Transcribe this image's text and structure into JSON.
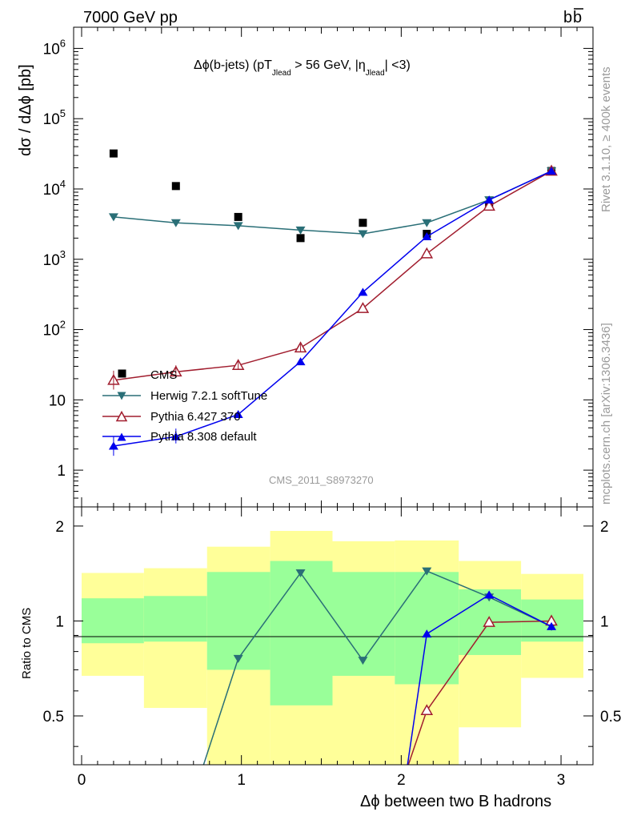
{
  "header": {
    "left": "7000 GeV pp",
    "right": "b",
    "right_bar": "b"
  },
  "side_labels": {
    "rivet": "Rivet 3.1.10, ≥ 400k events",
    "mcplots": "mcplots.cern.ch [arXiv:1306.3436]"
  },
  "colors": {
    "cms": "#000000",
    "herwig": "#2a6f77",
    "pythia6": "#a11d2e",
    "pythia8": "#0000ee",
    "band_inner": "#99ff99",
    "band_outer": "#ffff99"
  },
  "chart_data": [
    {
      "type": "scatter",
      "title_parts": {
        "main": "Δϕ(b-jets) (pT",
        "sub1": "Jlead",
        "mid": " >  56 GeV, |η",
        "sub2": "Jlead",
        "end": "| <3)"
      },
      "ylabel": "dσ / dΔϕ [pb]",
      "yscale": "log",
      "ylim": [
        0.3,
        2000000
      ],
      "xlim": [
        -0.05,
        3.2
      ],
      "y_ticks": [
        {
          "v": 1,
          "label": "1"
        },
        {
          "v": 10,
          "label": "10"
        },
        {
          "v": 100,
          "label": "10",
          "exp": "2"
        },
        {
          "v": 1000,
          "label": "10",
          "exp": "3"
        },
        {
          "v": 10000,
          "label": "10",
          "exp": "4"
        },
        {
          "v": 100000,
          "label": "10",
          "exp": "5"
        },
        {
          "v": 1000000,
          "label": "10",
          "exp": "6"
        }
      ],
      "watermark": "CMS_2011_S8973270",
      "legend_position": "bottom-left",
      "series": [
        {
          "name": "CMS",
          "key": "cms",
          "marker": "square",
          "x": [
            0.2,
            0.59,
            0.98,
            1.37,
            1.76,
            2.16,
            2.55,
            2.94
          ],
          "y": [
            32000,
            11000,
            4000,
            2000,
            3300,
            2300,
            5800,
            18000
          ]
        },
        {
          "name": "Herwig 7.2.1 softTune",
          "key": "herwig",
          "marker": "triangle-down",
          "x": [
            0.2,
            0.59,
            0.98,
            1.37,
            1.76,
            2.16,
            2.55,
            2.94
          ],
          "y": [
            4000,
            3300,
            3000,
            2600,
            2300,
            3300,
            7000,
            18000
          ]
        },
        {
          "name": "Pythia 6.427 370",
          "key": "pythia6",
          "marker": "triangle-open",
          "x": [
            0.2,
            0.59,
            0.98,
            1.37,
            1.76,
            2.16,
            2.55,
            2.94
          ],
          "y": [
            19,
            25,
            31,
            55,
            200,
            1200,
            5700,
            18000
          ]
        },
        {
          "name": "Pythia 8.308 default",
          "key": "pythia8",
          "marker": "triangle-up",
          "x": [
            0.2,
            0.59,
            0.98,
            1.37,
            1.76,
            2.16,
            2.55,
            2.94
          ],
          "y": [
            2.2,
            3.0,
            6.2,
            35,
            340,
            2100,
            7000,
            18000
          ]
        }
      ]
    },
    {
      "type": "line",
      "ylabel": "Ratio to CMS",
      "xlabel": "Δϕ between two B hadrons",
      "yscale": "log",
      "ylim": [
        0.35,
        2.3
      ],
      "xlim": [
        -0.05,
        3.2
      ],
      "x_ticks": [
        0,
        1,
        2,
        3
      ],
      "y_ticks": [
        0.5,
        1,
        2
      ],
      "reference_line": 1,
      "bands": [
        {
          "x0": 0.0,
          "x1": 0.39,
          "inner": [
            0.85,
            1.18
          ],
          "outer": [
            0.67,
            1.42
          ]
        },
        {
          "x0": 0.39,
          "x1": 0.785,
          "inner": [
            0.86,
            1.2
          ],
          "outer": [
            0.53,
            1.47
          ]
        },
        {
          "x0": 0.785,
          "x1": 1.18,
          "inner": [
            0.7,
            1.43
          ],
          "outer": [
            0.3,
            1.72
          ]
        },
        {
          "x0": 1.18,
          "x1": 1.57,
          "inner": [
            0.54,
            1.55
          ],
          "outer": [
            0.3,
            1.93
          ]
        },
        {
          "x0": 1.57,
          "x1": 1.96,
          "inner": [
            0.67,
            1.43
          ],
          "outer": [
            0.3,
            1.79
          ]
        },
        {
          "x0": 1.96,
          "x1": 2.36,
          "inner": [
            0.63,
            1.43
          ],
          "outer": [
            0.3,
            1.8
          ]
        },
        {
          "x0": 2.36,
          "x1": 2.75,
          "inner": [
            0.78,
            1.26
          ],
          "outer": [
            0.46,
            1.55
          ]
        },
        {
          "x0": 2.75,
          "x1": 3.14,
          "inner": [
            0.86,
            1.17
          ],
          "outer": [
            0.66,
            1.41
          ]
        }
      ],
      "series": [
        {
          "key": "herwig",
          "marker": "triangle-down",
          "x": [
            0.98,
            1.37,
            1.76,
            2.16,
            2.55,
            2.94
          ],
          "y": [
            0.76,
            1.42,
            0.75,
            1.44,
            1.19,
            0.96
          ],
          "offscale_start": {
            "x": 0.72,
            "y": 0.3
          }
        },
        {
          "key": "pythia6",
          "marker": "triangle-open",
          "x": [
            2.16,
            2.55,
            2.94
          ],
          "y": [
            0.52,
            0.99,
            1.0
          ],
          "offscale_start": {
            "x": 2.0,
            "y": 0.3
          }
        },
        {
          "key": "pythia8",
          "marker": "triangle-up",
          "x": [
            2.16,
            2.55,
            2.94
          ],
          "y": [
            0.91,
            1.21,
            0.96
          ],
          "offscale_start": {
            "x": 2.02,
            "y": 0.3
          }
        }
      ]
    }
  ]
}
